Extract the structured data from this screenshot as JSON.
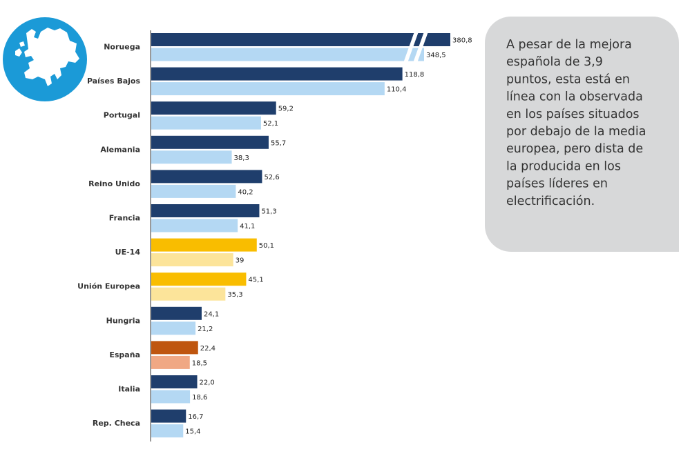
{
  "chart_data": {
    "type": "bar",
    "orientation": "horizontal",
    "categories": [
      "Noruega",
      "Países Bajos",
      "Portugal",
      "Alemania",
      "Reino Unido",
      "Francia",
      "UE-14",
      "Unión Europea",
      "Hungria",
      "España",
      "Italia",
      "Rep. Checa"
    ],
    "series": [
      {
        "values": [
          380.8,
          118.8,
          59.2,
          55.7,
          52.6,
          51.3,
          50.1,
          45.1,
          24.1,
          22.4,
          22.0,
          16.7
        ],
        "value_labels": [
          "380,8",
          "118,8",
          "59,2",
          "55,7",
          "52,6",
          "51,3",
          "50,1",
          "45,1",
          "24,1",
          "22,4",
          "22,0",
          "16,7"
        ],
        "colors": [
          "#1f3e6c",
          "#1f3e6c",
          "#1f3e6c",
          "#1f3e6c",
          "#1f3e6c",
          "#1f3e6c",
          "#f9bd00",
          "#f9bd00",
          "#1f3e6c",
          "#bf560f",
          "#1f3e6c",
          "#1f3e6c"
        ]
      },
      {
        "values": [
          348.5,
          110.4,
          52.1,
          38.3,
          40.2,
          41.1,
          39,
          35.3,
          21.2,
          18.5,
          18.6,
          15.4
        ],
        "value_labels": [
          "348,5",
          "110,4",
          "52,1",
          "38,3",
          "40,2",
          "41,1",
          "39",
          "35,3",
          "21,2",
          "18,5",
          "18,6",
          "15,4"
        ],
        "colors": [
          "#b4d8f3",
          "#b4d8f3",
          "#b4d8f3",
          "#b4d8f3",
          "#b4d8f3",
          "#b4d8f3",
          "#fce49a",
          "#fce49a",
          "#b4d8f3",
          "#f0a884",
          "#b4d8f3",
          "#b4d8f3"
        ]
      }
    ],
    "xlim": [
      0,
      130
    ],
    "annotation_lines": [
      "A pesar de la mejora",
      "española de 3,9",
      "puntos, esta está en",
      "línea con la observada",
      "en los países situados",
      "por debajo de la media",
      "europea, pero dista de",
      "la producida en los",
      "países líderes en",
      "electrificación."
    ]
  }
}
